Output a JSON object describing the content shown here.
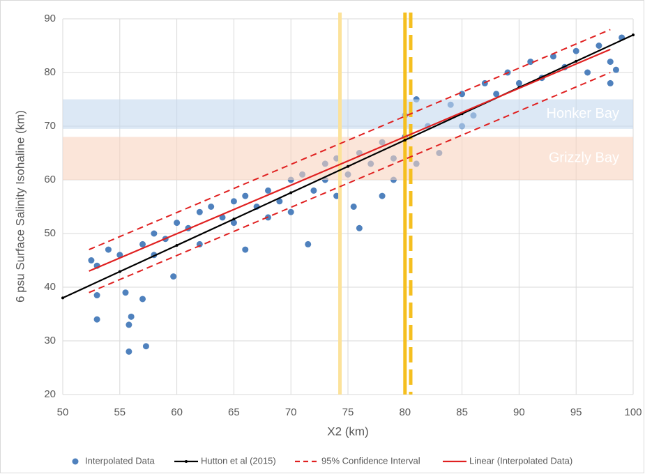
{
  "chart_data": {
    "type": "scatter",
    "xlabel": "X2 (km)",
    "ylabel": "6 psu Surface Salinity Isohaline (km)",
    "xlim": [
      50,
      100
    ],
    "ylim": [
      20,
      90
    ],
    "xticks": [
      50,
      55,
      60,
      65,
      70,
      75,
      80,
      85,
      90,
      95,
      100
    ],
    "yticks": [
      20,
      30,
      40,
      50,
      60,
      70,
      80,
      90
    ],
    "grid": true,
    "legend": "bottom",
    "bands": [
      {
        "label": "Honker Bay",
        "range": [
          69.5,
          75
        ],
        "color": "#c5d9ee"
      },
      {
        "label": "Grizzly Bay",
        "range": [
          60,
          68
        ],
        "color": "#f8d3bf"
      }
    ],
    "vlines": [
      {
        "x": 74.3,
        "color": "#fce29a",
        "dash": false
      },
      {
        "x": 80,
        "color": "#f5bf1f",
        "dash": false
      },
      {
        "x": 80.5,
        "color": "#f5bf1f",
        "dash": true
      }
    ],
    "series": [
      {
        "name": "Interpolated Data",
        "type": "scatter",
        "color": "#4f81bd",
        "x": [
          52.5,
          53,
          53,
          53,
          54,
          55,
          55.5,
          55.8,
          55.8,
          56,
          57,
          57.3,
          57,
          58,
          58,
          59,
          59.7,
          60,
          61,
          62,
          62,
          63,
          64,
          65,
          65,
          66,
          66,
          67,
          68,
          68,
          69,
          70,
          70,
          71,
          71.5,
          72,
          73,
          73,
          74,
          74,
          75,
          75.5,
          76,
          76,
          77,
          78,
          78,
          79,
          79,
          80,
          80,
          81,
          81,
          82,
          83,
          84,
          85,
          85,
          86,
          87,
          88,
          89,
          90,
          91,
          92,
          93,
          94,
          95,
          96,
          97,
          98,
          98,
          99,
          98.5
        ],
        "y": [
          45,
          44,
          34,
          38.5,
          47,
          46,
          39,
          28,
          33,
          34.5,
          37.8,
          29,
          48,
          50,
          46,
          49,
          42,
          52,
          51,
          54,
          48,
          55,
          53,
          56,
          52,
          47,
          57,
          55,
          58,
          53,
          56,
          60,
          54,
          61,
          48,
          58,
          63,
          60,
          64,
          57,
          61,
          55,
          65,
          51,
          63,
          67,
          57,
          64,
          60,
          68,
          72,
          75,
          63,
          70,
          65,
          74,
          76,
          70,
          72,
          78,
          76,
          80,
          78,
          82,
          79,
          83,
          81,
          84,
          80,
          85,
          82,
          78,
          86.5,
          80.5
        ]
      },
      {
        "name": "Hutton et al (2015)",
        "type": "line",
        "color": "#000000",
        "marker": true,
        "x": [
          50,
          55,
          60,
          65,
          70,
          75,
          80,
          85,
          90,
          95,
          100
        ],
        "y": [
          38,
          42.9,
          47.8,
          52.7,
          57.6,
          62.5,
          67.4,
          72.3,
          77.2,
          82.1,
          87
        ]
      },
      {
        "name": "95% Confidence Interval",
        "type": "interval",
        "color": "#e02020",
        "dash": true,
        "x": [
          52.3,
          98
        ],
        "upper": [
          47,
          88
        ],
        "lower": [
          39,
          80
        ]
      },
      {
        "name": "Linear (Interpolated Data)",
        "type": "line",
        "color": "#e02020",
        "x": [
          52.3,
          98
        ],
        "y": [
          43,
          84.3
        ]
      }
    ]
  }
}
